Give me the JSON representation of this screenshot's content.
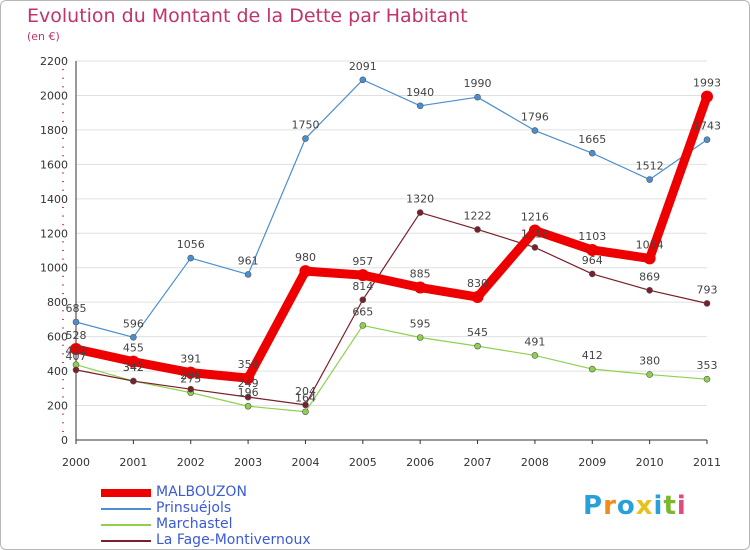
{
  "title": "Evolution du Montant de la Dette par Habitant",
  "subtitle": "(en €)",
  "logo": {
    "text": "Proxiti",
    "colors": [
      "#2aa0d8",
      "#f08c1a",
      "#2aa0d8",
      "#e8c21c",
      "#2aa0d8",
      "#7ab82e",
      "#e04a7d"
    ]
  },
  "chart_data": {
    "type": "line",
    "x": [
      "2000",
      "2001",
      "2002",
      "2003",
      "2004",
      "2005",
      "2006",
      "2007",
      "2008",
      "2009",
      "2010",
      "2011"
    ],
    "ylim": [
      0,
      2200
    ],
    "yticks": [
      "0",
      "200",
      "400",
      "600",
      "800",
      "1000",
      "1200",
      "1400",
      "1600",
      "1800",
      "2000",
      "2200"
    ],
    "grid": "horizontal",
    "legend_position": "bottom-left",
    "series": [
      {
        "name": "Prinsuéjols",
        "color": "#4a8fd0",
        "values": [
          685,
          596,
          1056,
          961,
          1750,
          2091,
          1940,
          1990,
          1796,
          1665,
          1512,
          1743
        ],
        "labels": [
          "685",
          "596",
          "1056",
          "961",
          "1750",
          "2091",
          "1940",
          "1990",
          "1796",
          "1665",
          "1512",
          "1743"
        ]
      },
      {
        "name": "Marchastel",
        "color": "#8fd14f",
        "values": [
          437,
          342,
          275,
          196,
          164,
          665,
          595,
          545,
          491,
          412,
          380,
          353
        ],
        "labels": [
          "437",
          "342",
          "275",
          "196",
          "164",
          "665",
          "595",
          "545",
          "491",
          "412",
          "380",
          "353"
        ]
      },
      {
        "name": "La Fage-Montivernoux",
        "color": "#7a1f2b",
        "values": [
          407,
          342,
          295,
          249,
          204,
          814,
          1320,
          1222,
          1118,
          964,
          869,
          793
        ],
        "labels": [
          "407",
          "342",
          "295",
          "249",
          "204",
          "814",
          "1320",
          "1222",
          "1118",
          "964",
          "869",
          "793"
        ]
      },
      {
        "name": "MALBOUZON",
        "color": "#ee0000",
        "values": [
          528,
          455,
          391,
          359,
          980,
          957,
          885,
          830,
          1216,
          1103,
          1054,
          1993
        ],
        "labels": [
          "528",
          "455",
          "391",
          "359",
          "980",
          "957",
          "885",
          "830",
          "1216",
          "1103",
          "1054",
          "1993"
        ]
      }
    ],
    "legend_order": [
      "MALBOUZON",
      "Prinsuéjols",
      "Marchastel",
      "La Fage-Montivernoux"
    ],
    "legend_colors": [
      "#ee0000",
      "#4a8fd0",
      "#8fd14f",
      "#7a1f2b"
    ]
  }
}
